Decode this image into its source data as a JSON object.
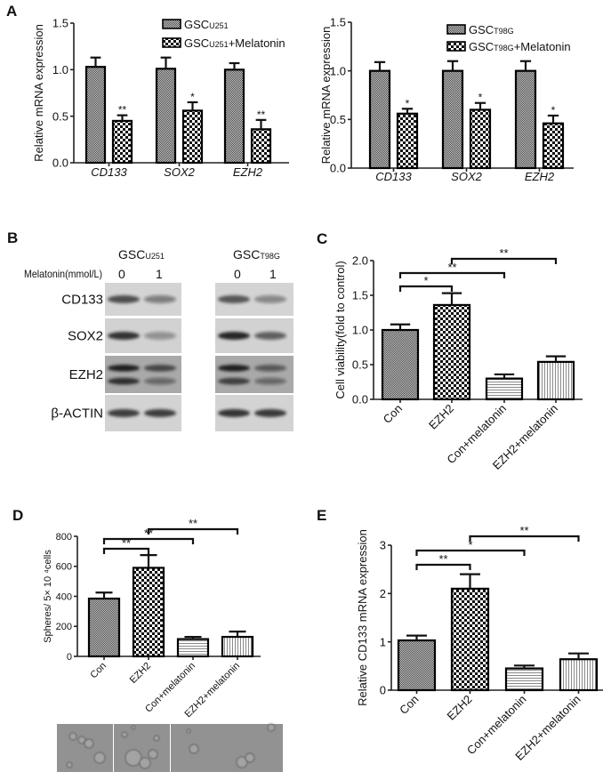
{
  "panel_labels": {
    "A": "A",
    "B": "B",
    "C": "C",
    "D": "D",
    "E": "E"
  },
  "chart_data": [
    {
      "id": "A_left",
      "panel": "A",
      "type": "bar",
      "title": "",
      "xlabel": "",
      "ylabel": "Relative mRNA expression",
      "ylim": [
        0,
        1.5
      ],
      "yticks": [
        "0.0",
        "0.5",
        "1.0",
        "1.5"
      ],
      "categories": [
        "CD133",
        "SOX2",
        "EZH2"
      ],
      "legend_position": "top-right",
      "series": [
        {
          "name": "GSC",
          "subscript": "U251",
          "suffix": "",
          "pattern": "grey-dots",
          "values": [
            1.03,
            1.01,
            1.0
          ],
          "errors": [
            0.1,
            0.12,
            0.07
          ]
        },
        {
          "name": "GSC",
          "subscript": "U251",
          "suffix": "+Melatonin",
          "pattern": "checker",
          "values": [
            0.45,
            0.56,
            0.36
          ],
          "errors": [
            0.06,
            0.09,
            0.1
          ],
          "significance": [
            "**",
            "*",
            "**"
          ]
        }
      ]
    },
    {
      "id": "A_right",
      "panel": "A",
      "type": "bar",
      "title": "",
      "xlabel": "",
      "ylabel": "Relative mRNA expression",
      "ylim": [
        0,
        1.5
      ],
      "yticks": [
        "0.0",
        "0.5",
        "1.0",
        "1.5"
      ],
      "categories": [
        "CD133",
        "SOX2",
        "EZH2"
      ],
      "legend_position": "top-right",
      "series": [
        {
          "name": "GSC",
          "subscript": "T98G",
          "suffix": "",
          "pattern": "grey-dots",
          "values": [
            1.0,
            1.0,
            1.0
          ],
          "errors": [
            0.09,
            0.1,
            0.1
          ]
        },
        {
          "name": "GSC",
          "subscript": "T98G",
          "suffix": "+Melatonin",
          "pattern": "checker",
          "values": [
            0.56,
            0.6,
            0.46
          ],
          "errors": [
            0.05,
            0.07,
            0.08
          ],
          "significance": [
            "*",
            "*",
            "*"
          ]
        }
      ]
    },
    {
      "id": "C",
      "panel": "C",
      "type": "bar",
      "title": "",
      "xlabel": "",
      "ylabel": "Cell viability(fold to control)",
      "ylim": [
        0,
        2.0
      ],
      "yticks": [
        "0.0",
        "0.5",
        "1.0",
        "1.5",
        "2.0"
      ],
      "categories": [
        "Con",
        "EZH2",
        "Con+melatonin",
        "EZH2+melatonin"
      ],
      "values": [
        1.0,
        1.36,
        0.3,
        0.54
      ],
      "errors": [
        0.08,
        0.17,
        0.06,
        0.08
      ],
      "patterns": [
        "grey-dots",
        "checker",
        "hlines",
        "vlines"
      ],
      "comparisons": [
        {
          "from": 0,
          "to": 1,
          "label": "*"
        },
        {
          "from": 0,
          "to": 2,
          "label": "**"
        },
        {
          "from": 1,
          "to": 3,
          "label": "**"
        }
      ]
    },
    {
      "id": "D",
      "panel": "D",
      "type": "bar",
      "title": "",
      "xlabel": "",
      "ylabel": "Spheres/ 5× 10 ⁴cells",
      "ylim": [
        0,
        800
      ],
      "yticks": [
        "0",
        "200",
        "400",
        "600",
        "800"
      ],
      "categories": [
        "Con",
        "EZH2",
        "Con+melatonin",
        "EZH2+melatonin"
      ],
      "values": [
        385,
        590,
        115,
        130
      ],
      "errors": [
        40,
        85,
        15,
        35
      ],
      "patterns": [
        "grey-dots",
        "checker",
        "hlines",
        "vlines"
      ],
      "comparisons": [
        {
          "from": 0,
          "to": 1,
          "label": "**"
        },
        {
          "from": 0,
          "to": 2,
          "label": "**"
        },
        {
          "from": 1,
          "to": 3,
          "label": "**"
        }
      ]
    },
    {
      "id": "E",
      "panel": "E",
      "type": "bar",
      "title": "",
      "xlabel": "",
      "ylabel": "Relative CD133 mRNA expression",
      "ylim": [
        0,
        3
      ],
      "yticks": [
        "0",
        "1",
        "2",
        "3"
      ],
      "categories": [
        "Con",
        "EZH2",
        "Con+melatonin",
        "EZH2+melatonin"
      ],
      "values": [
        1.03,
        2.1,
        0.45,
        0.64
      ],
      "errors": [
        0.1,
        0.3,
        0.06,
        0.12
      ],
      "patterns": [
        "grey-dots",
        "checker",
        "hlines",
        "vlines"
      ],
      "comparisons": [
        {
          "from": 0,
          "to": 1,
          "label": "**"
        },
        {
          "from": 0,
          "to": 2,
          "label": "*"
        },
        {
          "from": 1,
          "to": 3,
          "label": "**"
        }
      ]
    }
  ],
  "western_blot": {
    "treatment_label": "Melatonin(mmol/L)",
    "groups": [
      {
        "name": "GSC",
        "subscript": "U251",
        "doses": [
          "0",
          "1"
        ]
      },
      {
        "name": "GSC",
        "subscript": "T98G",
        "doses": [
          "0",
          "1"
        ]
      }
    ],
    "rows": [
      {
        "label": "CD133",
        "background": "#d4d4d4",
        "bands": [
          [
            [
              0.72
            ],
            [
              0.45
            ]
          ],
          [
            [
              0.68
            ],
            [
              0.4
            ]
          ]
        ]
      },
      {
        "label": "SOX2",
        "background": "#d2d2d2",
        "bands": [
          [
            [
              0.85
            ],
            [
              0.35
            ]
          ],
          [
            [
              0.92
            ],
            [
              0.6
            ]
          ]
        ]
      },
      {
        "label": "EZH2",
        "background": "#a9a9a9",
        "bands": [
          [
            [
              0.95,
              0.85
            ],
            [
              0.7,
              0.45
            ]
          ],
          [
            [
              0.95,
              0.75
            ],
            [
              0.55,
              0.45
            ]
          ]
        ]
      },
      {
        "label": "β-ACTIN",
        "background": "#d3d3d3",
        "bands": [
          [
            [
              0.8
            ],
            [
              0.8
            ]
          ],
          [
            [
              0.85
            ],
            [
              0.82
            ]
          ]
        ]
      }
    ]
  },
  "micrographs": {
    "count": 4
  }
}
